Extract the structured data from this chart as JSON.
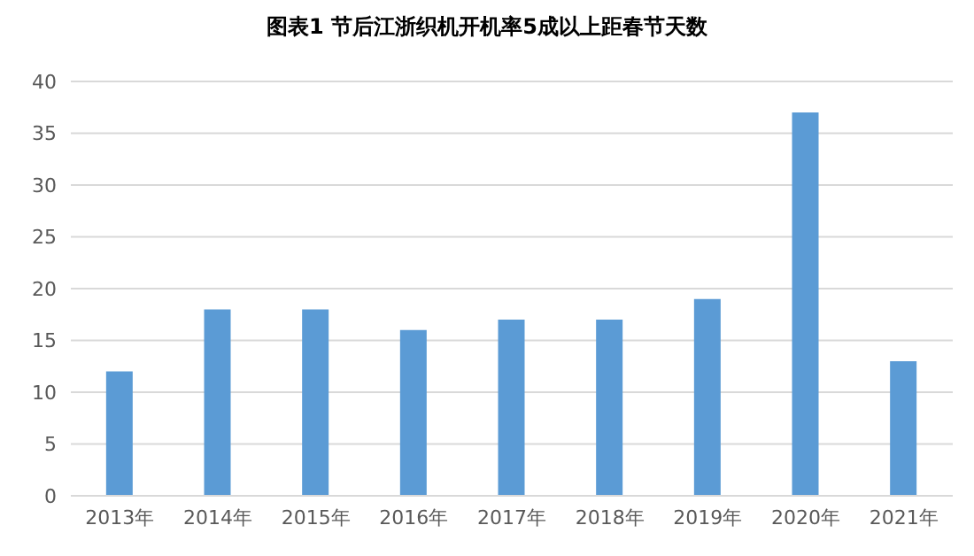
{
  "chart_data": {
    "type": "bar",
    "title": "图表1  节后江浙织机开机率5成以上距春节天数",
    "categories": [
      "2013年",
      "2014年",
      "2015年",
      "2016年",
      "2017年",
      "2018年",
      "2019年",
      "2020年",
      "2021年"
    ],
    "values": [
      12,
      18,
      18,
      16,
      17,
      17,
      19,
      37,
      13
    ],
    "color": "#5b9bd5",
    "ylim": [
      0,
      40
    ],
    "yticks": [
      0,
      5,
      10,
      15,
      20,
      25,
      30,
      35,
      40
    ],
    "grid": "y"
  }
}
